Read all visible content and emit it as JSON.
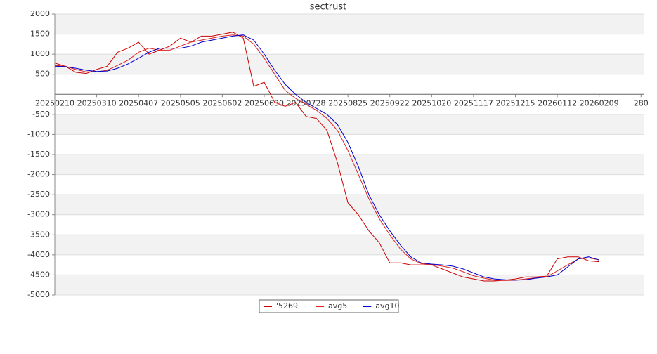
{
  "chart_data": {
    "type": "line",
    "title": "sectrust",
    "categories": [
      "20250210",
      null,
      null,
      null,
      "20250310",
      null,
      null,
      null,
      "20250407",
      null,
      null,
      null,
      "20250505",
      null,
      null,
      null,
      "20250602",
      null,
      null,
      null,
      "20250630",
      null,
      null,
      null,
      "20250728",
      null,
      null,
      null,
      "20250825",
      null,
      null,
      null,
      "20250922",
      null,
      null,
      null,
      "20251020",
      null,
      null,
      null,
      "20251117",
      null,
      null,
      null,
      "20251215",
      null,
      null,
      null,
      "20260112",
      null,
      null,
      null,
      "20260209",
      null,
      null,
      null,
      "280"
    ],
    "series": [
      {
        "name": "'5269'",
        "color": "#cc0000",
        "values": [
          780,
          700,
          550,
          520,
          620,
          700,
          1050,
          1150,
          1300,
          1000,
          1100,
          1200,
          1400,
          1300,
          1450,
          1450,
          1500,
          1550,
          1400,
          200,
          300,
          -200,
          -300,
          -200,
          -550,
          -600,
          -900,
          -1700,
          -2700,
          -3000,
          -3400,
          -3700,
          -4200,
          -4200,
          -4250,
          -4250,
          -4250,
          -4350,
          -4450,
          -4550,
          -4600,
          -4650,
          -4650,
          -4630,
          -4600,
          -4550,
          -4550,
          -4530,
          -4100,
          -4050,
          -4050,
          -4150,
          -4170,
          null,
          null,
          null,
          null
        ]
      },
      {
        "name": "avg5",
        "color": "#dd2222",
        "values": [
          720,
          700,
          620,
          560,
          560,
          600,
          720,
          850,
          1050,
          1150,
          1100,
          1100,
          1200,
          1300,
          1350,
          1400,
          1450,
          1480,
          1450,
          1250,
          900,
          500,
          100,
          -100,
          -250,
          -400,
          -600,
          -900,
          -1400,
          -2000,
          -2600,
          -3100,
          -3500,
          -3850,
          -4100,
          -4220,
          -4240,
          -4280,
          -4330,
          -4420,
          -4520,
          -4580,
          -4630,
          -4640,
          -4630,
          -4600,
          -4570,
          -4550,
          -4400,
          -4250,
          -4100,
          -4080,
          -4120,
          null,
          null,
          null,
          null
        ]
      },
      {
        "name": "avg10",
        "color": "#0000cc",
        "values": [
          700,
          690,
          650,
          600,
          570,
          580,
          650,
          760,
          900,
          1050,
          1150,
          1150,
          1150,
          1200,
          1300,
          1350,
          1400,
          1450,
          1480,
          1350,
          1000,
          600,
          250,
          0,
          -200,
          -350,
          -500,
          -750,
          -1200,
          -1800,
          -2500,
          -3000,
          -3400,
          -3750,
          -4050,
          -4200,
          -4230,
          -4250,
          -4280,
          -4350,
          -4450,
          -4550,
          -4600,
          -4620,
          -4630,
          -4620,
          -4580,
          -4550,
          -4500,
          -4300,
          -4100,
          -4050,
          -4130,
          null,
          null,
          null,
          null
        ]
      }
    ],
    "ylim": [
      -5000,
      2000
    ],
    "yticks": [
      2000,
      1500,
      1000,
      500,
      -500,
      -1000,
      -1500,
      -2000,
      -2500,
      -3000,
      -3500,
      -4000,
      -4500,
      -5000
    ],
    "grid": true,
    "legend": "bottom"
  }
}
